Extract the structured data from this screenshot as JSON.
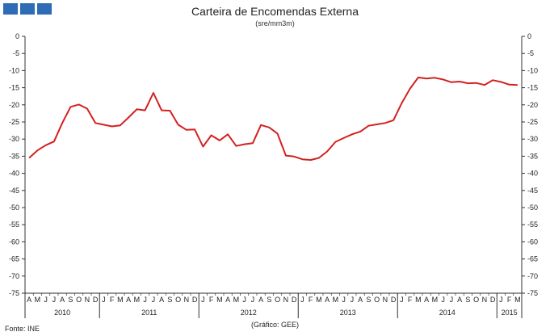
{
  "header": {
    "title": "Carteira de Encomendas Externa",
    "subtitle": "(sre/mm3m)",
    "logo_color": "#2e6db5"
  },
  "footer": {
    "source": "Fonte: INE",
    "credit": "(Gráfico: GEE)"
  },
  "chart_data": {
    "type": "line",
    "title": "Carteira de Encomendas Externa",
    "subtitle": "(sre/mm3m)",
    "ylim": [
      -75,
      0
    ],
    "yticks": [
      0,
      -5,
      -10,
      -15,
      -20,
      -25,
      -30,
      -35,
      -40,
      -45,
      -50,
      -55,
      -60,
      -65,
      -70,
      -75
    ],
    "y_axis_both_sides": true,
    "grid": false,
    "line_color": "#d42020",
    "month_labels": [
      "A",
      "M",
      "J",
      "J",
      "A",
      "S",
      "O",
      "N",
      "D",
      "J",
      "F",
      "M",
      "A",
      "M",
      "J",
      "J",
      "A",
      "S",
      "O",
      "N",
      "D",
      "J",
      "F",
      "M",
      "A",
      "M",
      "J",
      "J",
      "A",
      "S",
      "O",
      "N",
      "D",
      "J",
      "F",
      "M",
      "A",
      "M",
      "J",
      "J",
      "A",
      "S",
      "O",
      "N",
      "D",
      "J",
      "F",
      "M",
      "A",
      "M",
      "J",
      "J",
      "A",
      "S",
      "O",
      "N",
      "D",
      "J",
      "F",
      "M"
    ],
    "years": [
      {
        "label": "2010",
        "months": 9
      },
      {
        "label": "2011",
        "months": 12
      },
      {
        "label": "2012",
        "months": 12
      },
      {
        "label": "2013",
        "months": 12
      },
      {
        "label": "2014",
        "months": 12
      },
      {
        "label": "2015",
        "months": 3
      }
    ],
    "series": [
      {
        "values": [
          -35.5,
          -33.3,
          -31.8,
          -30.7,
          -25.3,
          -20.6,
          -19.9,
          -21.1,
          -25.3,
          -25.8,
          -26.3,
          -26.0,
          -23.7,
          -21.3,
          -21.6,
          -16.5,
          -21.6,
          -21.7,
          -25.8,
          -27.3,
          -27.2,
          -32.2,
          -28.9,
          -30.4,
          -28.6,
          -32.0,
          -31.5,
          -31.2,
          -25.9,
          -26.6,
          -28.4,
          -34.8,
          -35.1,
          -35.9,
          -36.1,
          -35.5,
          -33.6,
          -30.8,
          -29.7,
          -28.6,
          -27.8,
          -26.1,
          -25.7,
          -25.3,
          -24.5,
          -19.5,
          -15.3,
          -12.0,
          -12.3,
          -12.1,
          -12.6,
          -13.4,
          -13.2,
          -13.7,
          -13.6,
          -14.2,
          -12.8,
          -13.3,
          -14.1,
          -14.2
        ]
      }
    ]
  }
}
